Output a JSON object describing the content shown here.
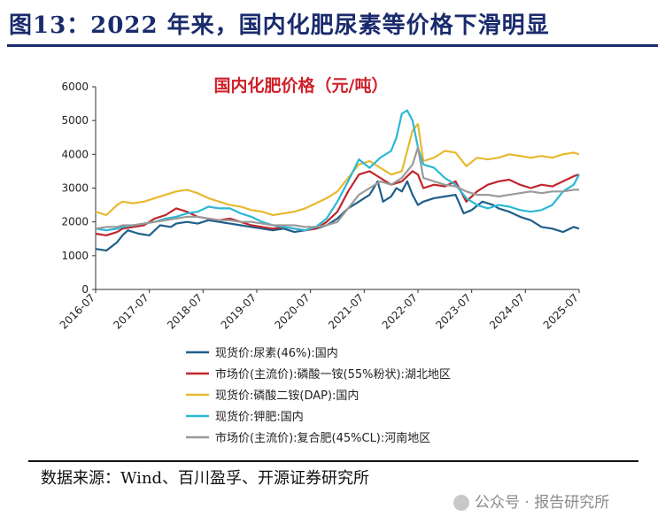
{
  "header": {
    "title": "图13：2022 年来，国内化肥尿素等价格下滑明显"
  },
  "footer": {
    "source": "数据来源：Wind、百川盈孚、开源证券研究所",
    "watermark": "公众号 · 报告研究所"
  },
  "chart_data": {
    "type": "line",
    "title": "国内化肥价格（元/吨）",
    "xlabel": "",
    "ylabel": "",
    "ylim": [
      0,
      6000
    ],
    "yticks": [
      0,
      1000,
      2000,
      3000,
      4000,
      5000,
      6000
    ],
    "xlim": [
      2016.5,
      2025.5
    ],
    "xticks": [
      {
        "x": 2016.5,
        "label": "2016-07"
      },
      {
        "x": 2017.5,
        "label": "2017-07"
      },
      {
        "x": 2018.5,
        "label": "2018-07"
      },
      {
        "x": 2019.5,
        "label": "2019-07"
      },
      {
        "x": 2020.5,
        "label": "2020-07"
      },
      {
        "x": 2021.5,
        "label": "2021-07"
      },
      {
        "x": 2022.5,
        "label": "2022-07"
      },
      {
        "x": 2023.5,
        "label": "2023-07"
      },
      {
        "x": 2024.5,
        "label": "2024-07"
      },
      {
        "x": 2025.5,
        "label": "2025-07"
      }
    ],
    "series": [
      {
        "name": "现货价:尿素(46%):国内",
        "color": "#1f5f8b",
        "x": [
          2016.5,
          2016.7,
          2016.9,
          2017.0,
          2017.1,
          2017.3,
          2017.5,
          2017.7,
          2017.9,
          2018.0,
          2018.2,
          2018.4,
          2018.6,
          2018.8,
          2019.0,
          2019.2,
          2019.4,
          2019.6,
          2019.8,
          2020.0,
          2020.2,
          2020.4,
          2020.6,
          2020.8,
          2021.0,
          2021.2,
          2021.4,
          2021.5,
          2021.6,
          2021.75,
          2021.85,
          2022.0,
          2022.1,
          2022.2,
          2022.3,
          2022.4,
          2022.5,
          2022.6,
          2022.8,
          2023.0,
          2023.2,
          2023.35,
          2023.5,
          2023.7,
          2023.9,
          2024.0,
          2024.2,
          2024.4,
          2024.6,
          2024.8,
          2025.0,
          2025.2,
          2025.4,
          2025.5
        ],
        "values": [
          1200,
          1150,
          1400,
          1600,
          1750,
          1650,
          1600,
          1900,
          1850,
          1950,
          2000,
          1950,
          2050,
          2000,
          1950,
          1900,
          1850,
          1800,
          1750,
          1800,
          1700,
          1750,
          1800,
          1900,
          2100,
          2400,
          2600,
          2700,
          2800,
          3200,
          2600,
          2750,
          3000,
          2900,
          3200,
          2800,
          2500,
          2600,
          2700,
          2750,
          2800,
          2250,
          2350,
          2600,
          2500,
          2400,
          2300,
          2150,
          2050,
          1850,
          1800,
          1700,
          1850,
          1800
        ]
      },
      {
        "name": "市场价(主流价):磷酸一铵(55%粉状):湖北地区",
        "color": "#c0262d",
        "x": [
          2016.5,
          2016.7,
          2016.9,
          2017.0,
          2017.2,
          2017.4,
          2017.6,
          2017.8,
          2018.0,
          2018.2,
          2018.4,
          2018.6,
          2018.8,
          2019.0,
          2019.2,
          2019.4,
          2019.6,
          2019.8,
          2020.0,
          2020.2,
          2020.4,
          2020.6,
          2020.8,
          2021.0,
          2021.2,
          2021.4,
          2021.6,
          2021.8,
          2022.0,
          2022.2,
          2022.4,
          2022.5,
          2022.6,
          2022.8,
          2023.0,
          2023.2,
          2023.4,
          2023.6,
          2023.8,
          2024.0,
          2024.2,
          2024.4,
          2024.6,
          2024.8,
          2025.0,
          2025.2,
          2025.4,
          2025.5
        ],
        "values": [
          1650,
          1600,
          1700,
          1800,
          1850,
          1900,
          2100,
          2200,
          2400,
          2300,
          2150,
          2100,
          2050,
          2100,
          2000,
          1900,
          1850,
          1800,
          1850,
          1800,
          1750,
          1800,
          2000,
          2300,
          2900,
          3400,
          3500,
          3300,
          3100,
          3200,
          3500,
          3400,
          3000,
          3100,
          3050,
          3200,
          2600,
          2900,
          3100,
          3200,
          3250,
          3100,
          3000,
          3100,
          3050,
          3200,
          3350,
          3400
        ]
      },
      {
        "name": "现货价:磷酸二铵(DAP):国内",
        "color": "#e7b92f",
        "x": [
          2016.5,
          2016.7,
          2016.9,
          2017.0,
          2017.2,
          2017.4,
          2017.6,
          2017.8,
          2018.0,
          2018.2,
          2018.4,
          2018.6,
          2018.8,
          2019.0,
          2019.2,
          2019.4,
          2019.6,
          2019.8,
          2020.0,
          2020.2,
          2020.4,
          2020.6,
          2020.8,
          2021.0,
          2021.2,
          2021.4,
          2021.6,
          2021.8,
          2022.0,
          2022.2,
          2022.4,
          2022.5,
          2022.6,
          2022.8,
          2023.0,
          2023.2,
          2023.4,
          2023.6,
          2023.8,
          2024.0,
          2024.2,
          2024.4,
          2024.6,
          2024.8,
          2025.0,
          2025.2,
          2025.4,
          2025.5
        ],
        "values": [
          2300,
          2200,
          2500,
          2600,
          2550,
          2600,
          2700,
          2800,
          2900,
          2950,
          2850,
          2700,
          2600,
          2500,
          2450,
          2350,
          2300,
          2200,
          2250,
          2300,
          2400,
          2550,
          2700,
          2900,
          3300,
          3700,
          3800,
          3600,
          3400,
          3500,
          4700,
          4900,
          3800,
          3900,
          4100,
          4050,
          3650,
          3900,
          3850,
          3900,
          4000,
          3950,
          3900,
          3950,
          3900,
          4000,
          4050,
          4000
        ]
      },
      {
        "name": "现货价:钾肥:国内",
        "color": "#2bb8d6",
        "x": [
          2016.5,
          2016.7,
          2016.9,
          2017.0,
          2017.2,
          2017.4,
          2017.6,
          2017.8,
          2018.0,
          2018.2,
          2018.4,
          2018.6,
          2018.8,
          2019.0,
          2019.2,
          2019.4,
          2019.6,
          2019.8,
          2020.0,
          2020.2,
          2020.4,
          2020.6,
          2020.8,
          2021.0,
          2021.2,
          2021.4,
          2021.6,
          2021.8,
          2022.0,
          2022.1,
          2022.2,
          2022.3,
          2022.4,
          2022.5,
          2022.6,
          2022.8,
          2023.0,
          2023.2,
          2023.4,
          2023.6,
          2023.8,
          2024.0,
          2024.2,
          2024.4,
          2024.6,
          2024.8,
          2025.0,
          2025.2,
          2025.4,
          2025.5
        ],
        "values": [
          1800,
          1750,
          1800,
          1850,
          1900,
          1950,
          2000,
          2100,
          2150,
          2250,
          2300,
          2450,
          2400,
          2400,
          2250,
          2150,
          2000,
          1900,
          1850,
          1800,
          1750,
          1850,
          2100,
          2600,
          3200,
          3850,
          3600,
          3900,
          4100,
          4500,
          5200,
          5300,
          5000,
          4200,
          3700,
          3600,
          3300,
          3100,
          2700,
          2500,
          2400,
          2500,
          2450,
          2350,
          2300,
          2350,
          2500,
          2900,
          3100,
          3400
        ]
      },
      {
        "name": "市场价(主流价):复合肥(45%CL):河南地区",
        "color": "#9a9a9a",
        "x": [
          2016.5,
          2016.7,
          2016.9,
          2017.0,
          2017.2,
          2017.4,
          2017.6,
          2017.8,
          2018.0,
          2018.2,
          2018.4,
          2018.6,
          2018.8,
          2019.0,
          2019.2,
          2019.4,
          2019.6,
          2019.8,
          2020.0,
          2020.2,
          2020.4,
          2020.6,
          2020.8,
          2021.0,
          2021.2,
          2021.4,
          2021.6,
          2021.8,
          2022.0,
          2022.2,
          2022.4,
          2022.5,
          2022.6,
          2022.8,
          2023.0,
          2023.2,
          2023.4,
          2023.6,
          2023.8,
          2024.0,
          2024.2,
          2024.4,
          2024.6,
          2024.8,
          2025.0,
          2025.2,
          2025.4,
          2025.5
        ],
        "values": [
          1800,
          1850,
          1850,
          1900,
          1900,
          1950,
          2000,
          2050,
          2100,
          2150,
          2150,
          2100,
          2050,
          2050,
          2000,
          2000,
          1950,
          1900,
          1900,
          1900,
          1850,
          1850,
          1900,
          2000,
          2400,
          2800,
          3000,
          3200,
          3100,
          3300,
          3700,
          4200,
          3300,
          3200,
          3100,
          3050,
          2900,
          2800,
          2800,
          2750,
          2800,
          2850,
          2900,
          2850,
          2900,
          2900,
          2950,
          2950
        ]
      }
    ]
  }
}
